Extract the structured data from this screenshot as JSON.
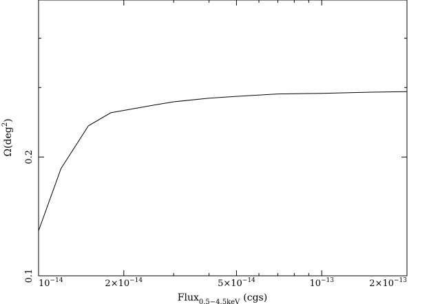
{
  "chart_data": {
    "type": "line",
    "xscale": "log",
    "yscale": "log",
    "xlim": [
      1e-14,
      2e-13
    ],
    "ylim": [
      0.1,
      0.5
    ],
    "grid": false,
    "xlabel": {
      "base": "Flux",
      "sub": "0.5−4.5keV",
      "tail": "(cgs)"
    },
    "ylabel": {
      "base": "Ω(deg",
      "sup": "2",
      "tail": ")"
    },
    "x_ticks": [
      {
        "value": 1e-14,
        "mant": "10",
        "exp": "−14",
        "pos": "start"
      },
      {
        "value": 2e-14,
        "mant": "2×10",
        "exp": "−14",
        "pos": "middle"
      },
      {
        "value": 5e-14,
        "mant": "5×10",
        "exp": "−14",
        "pos": "middle"
      },
      {
        "value": 1e-13,
        "mant": "10",
        "exp": "−13",
        "pos": "middle"
      },
      {
        "value": 2e-13,
        "mant": "2×10",
        "exp": "−13",
        "pos": "end"
      }
    ],
    "x_minor_ticks": [
      3e-14,
      4e-14,
      6e-14,
      7e-14,
      8e-14,
      9e-14
    ],
    "y_ticks": [
      {
        "value": 0.1,
        "label": "0.1"
      },
      {
        "value": 0.2,
        "label": "0.2"
      }
    ],
    "y_minor_ticks": [
      0.3,
      0.4
    ],
    "series": [
      {
        "values": [
          [
            1e-14,
            0.13
          ],
          [
            1.2e-14,
            0.187
          ],
          [
            1.5e-14,
            0.24
          ],
          [
            1.8e-14,
            0.259
          ],
          [
            2.5e-14,
            0.27
          ],
          [
            3e-14,
            0.276
          ],
          [
            4e-14,
            0.282
          ],
          [
            5e-14,
            0.285
          ],
          [
            7e-14,
            0.289
          ],
          [
            1e-13,
            0.29
          ],
          [
            1.5e-13,
            0.292
          ],
          [
            2e-13,
            0.293
          ]
        ]
      }
    ]
  }
}
